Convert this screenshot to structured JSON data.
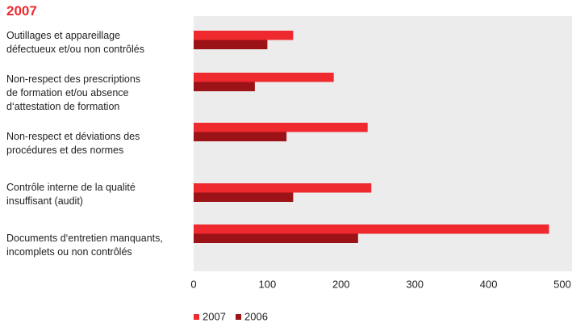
{
  "chart_data": {
    "type": "hbar",
    "title": "2007",
    "categories": [
      "Outillages et appareillage\ndéfectueux et/ou non contrôlés",
      "Non-respect des prescriptions\nde formation et/ou absence\nd‘attestation de formation",
      "Non-respect et déviations des\nprocédures et des normes",
      "Contrôle interne de la qualité\ninsuffisant (audit)",
      "Documents d‘entretien manquants,\nincomplets ou non contrôlés"
    ],
    "series": [
      {
        "name": "2007",
        "color": "#ee2a2f",
        "values": [
          135,
          190,
          236,
          241,
          482
        ]
      },
      {
        "name": "2006",
        "color": "#9b1217",
        "values": [
          100,
          83,
          126,
          135,
          223
        ]
      }
    ],
    "xlim": [
      0,
      500
    ],
    "xticks": [
      0,
      100,
      200,
      300,
      400,
      500
    ]
  }
}
